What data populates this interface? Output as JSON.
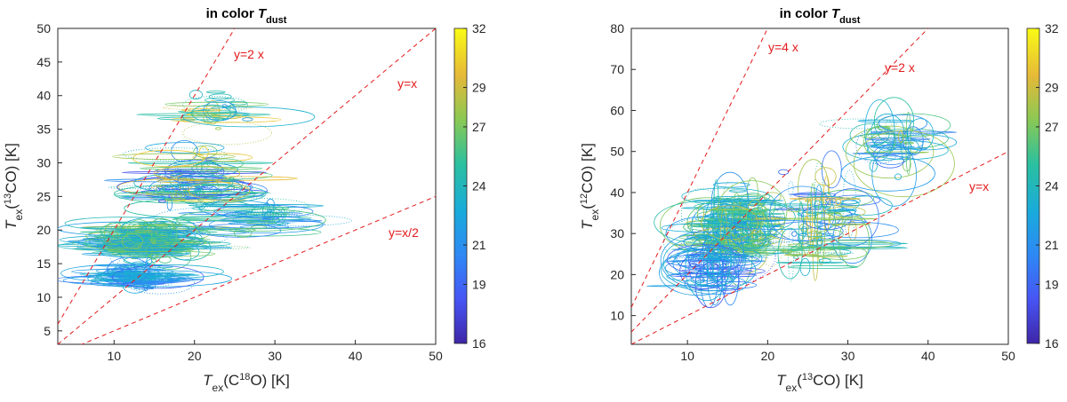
{
  "chart_data": [
    {
      "type": "scatter",
      "marker": "error-ellipse",
      "title_prefix": "in color ",
      "title_var": "T",
      "title_sub": "dust",
      "xlabel": {
        "var": "T",
        "sub": "ex",
        "rest": "(C",
        "iso": "18",
        "tail": "O) [K]"
      },
      "ylabel": {
        "var": "T",
        "sub": "ex",
        "rest": "(",
        "iso": "13",
        "tail": "CO) [K]"
      },
      "xlim": [
        3,
        50
      ],
      "ylim": [
        3,
        50
      ],
      "xticks": [
        "10",
        "20",
        "30",
        "40",
        "50"
      ],
      "yticks": [
        "5",
        "10",
        "15",
        "20",
        "25",
        "30",
        "35",
        "40",
        "45",
        "50"
      ],
      "reference_lines": [
        {
          "label": "y=2 x",
          "slope": 2
        },
        {
          "label": "y=x",
          "slope": 1
        },
        {
          "label": "y=x/2",
          "slope": 0.5
        }
      ],
      "clusters": [
        {
          "cx": 14,
          "cy": 18.5,
          "sx": 4.5,
          "sy": 2.5,
          "n": 180,
          "tmin": 21,
          "tmax": 28
        },
        {
          "cx": 13,
          "cy": 13,
          "sx": 3,
          "sy": 1.5,
          "n": 80,
          "tmin": 19,
          "tmax": 24
        },
        {
          "cx": 20,
          "cy": 27,
          "sx": 4.5,
          "sy": 4,
          "n": 90,
          "tmin": 18,
          "tmax": 31
        },
        {
          "cx": 27,
          "cy": 22,
          "sx": 5,
          "sy": 3,
          "n": 40,
          "tmin": 20,
          "tmax": 27
        },
        {
          "cx": 23,
          "cy": 38,
          "sx": 3.5,
          "sy": 3,
          "n": 30,
          "tmin": 21,
          "tmax": 31
        }
      ],
      "colorbar": {
        "min": 16,
        "max": 32,
        "ticks": [
          "16",
          "19",
          "21",
          "24",
          "27",
          "29",
          "32"
        ]
      }
    },
    {
      "type": "scatter",
      "marker": "error-ellipse",
      "title_prefix": "in color ",
      "title_var": "T",
      "title_sub": "dust",
      "xlabel": {
        "var": "T",
        "sub": "ex",
        "rest": "(",
        "iso": "13",
        "tail": "CO) [K]"
      },
      "ylabel": {
        "var": "T",
        "sub": "ex",
        "rest": "(",
        "iso": "12",
        "tail": "CO) [K]"
      },
      "xlim": [
        3,
        50
      ],
      "ylim": [
        3,
        80
      ],
      "xticks": [
        "10",
        "20",
        "30",
        "40",
        "50"
      ],
      "yticks": [
        "10",
        "20",
        "30",
        "40",
        "50",
        "60",
        "70",
        "80"
      ],
      "reference_lines": [
        {
          "label": "y=4 x",
          "slope": 4
        },
        {
          "label": "y=2 x",
          "slope": 2
        },
        {
          "label": "y=x",
          "slope": 1
        }
      ],
      "clusters": [
        {
          "cx": 16,
          "cy": 32,
          "sx": 4,
          "sy": 7,
          "n": 170,
          "tmin": 21,
          "tmax": 29
        },
        {
          "cx": 13,
          "cy": 22,
          "sx": 2.5,
          "sy": 5,
          "n": 60,
          "tmin": 18,
          "tmax": 24
        },
        {
          "cx": 27,
          "cy": 35,
          "sx": 5,
          "sy": 8,
          "n": 70,
          "tmin": 18,
          "tmax": 30
        },
        {
          "cx": 36,
          "cy": 52,
          "sx": 4,
          "sy": 6,
          "n": 45,
          "tmin": 19,
          "tmax": 29
        },
        {
          "cx": 25,
          "cy": 25,
          "sx": 6,
          "sy": 3,
          "n": 25,
          "tmin": 22,
          "tmax": 29
        }
      ],
      "colorbar": {
        "min": 16,
        "max": 32,
        "ticks": [
          "16",
          "19",
          "21",
          "24",
          "27",
          "29",
          "32"
        ]
      }
    }
  ]
}
